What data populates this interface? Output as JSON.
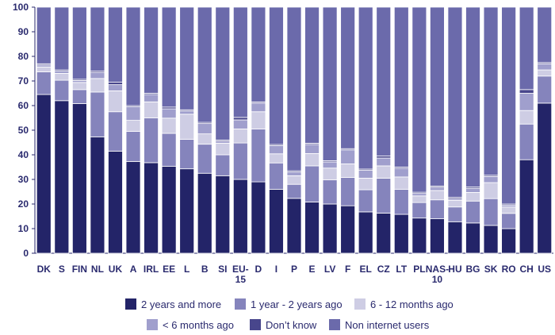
{
  "chart_data": {
    "type": "bar",
    "stacked": true,
    "title": "",
    "xlabel": "",
    "ylabel": "",
    "ylim": [
      0,
      100
    ],
    "yticks": [
      0,
      10,
      20,
      30,
      40,
      50,
      60,
      70,
      80,
      90,
      100
    ],
    "grid": false,
    "legend_position": "bottom",
    "categories": [
      "DK",
      "S",
      "FIN",
      "NL",
      "UK",
      "A",
      "IRL",
      "EE",
      "L",
      "B",
      "SI",
      "EU-15",
      "D",
      "I",
      "P",
      "E",
      "LV",
      "F",
      "EL",
      "CZ",
      "LT",
      "PL",
      "NAS-10",
      "HU",
      "BG",
      "SK",
      "RO",
      "CH",
      "US"
    ],
    "series": [
      {
        "name": "2 years and more",
        "color": "#232468",
        "values": [
          64.5,
          62,
          60.8,
          47.3,
          41.5,
          37.3,
          36.8,
          35.3,
          34.3,
          32.5,
          31.5,
          30,
          29,
          26,
          22.3,
          20.8,
          20,
          19.3,
          16.8,
          16.3,
          15.8,
          14.3,
          14,
          12.8,
          12.3,
          11.3,
          10,
          38,
          61
        ]
      },
      {
        "name": "1 year - 2 years ago",
        "color": "#8584bc",
        "values": [
          9.2,
          8.3,
          5.7,
          18.2,
          16,
          12.2,
          18.2,
          13.4,
          12,
          11.8,
          8.5,
          14.8,
          21.5,
          10.7,
          5.7,
          14.7,
          9.8,
          11.5,
          9,
          14.2,
          10.2,
          6.3,
          7.7,
          6,
          8.9,
          10.9,
          6.2,
          14.5,
          11
        ]
      },
      {
        "name": "6 - 12 months ago",
        "color": "#cecde4",
        "values": [
          2,
          2.8,
          2.9,
          5.5,
          8.5,
          4.5,
          6.5,
          6.2,
          10.2,
          4.2,
          4.7,
          5.7,
          7,
          3.7,
          3.5,
          5,
          4.8,
          5.5,
          4.7,
          5,
          5,
          2.7,
          3.8,
          2.7,
          3.5,
          6.5,
          2.6,
          5.5,
          2.5
        ]
      },
      {
        "name": "< 6 months ago",
        "color": "#a09fcd",
        "values": [
          0.8,
          0.9,
          0.8,
          2.5,
          2.5,
          5.5,
          3,
          3.8,
          1.3,
          4.2,
          0.8,
          3.7,
          3.5,
          3.3,
          1.5,
          3.7,
          2.5,
          5.7,
          3.2,
          3.2,
          3.5,
          1,
          1.3,
          0.7,
          1.7,
          2.5,
          0.7,
          7,
          2.5
        ]
      },
      {
        "name": "Don’t know",
        "color": "#48468c",
        "values": [
          0.5,
          0.5,
          0.5,
          0.5,
          1,
          0.5,
          0.5,
          0.7,
          0.5,
          0.5,
          0.5,
          1,
          0.5,
          0.5,
          0.5,
          0.5,
          0.5,
          0.5,
          0.5,
          0.8,
          0.5,
          0.5,
          0.5,
          0.5,
          0.5,
          0.5,
          0.5,
          1.5,
          0.5
        ]
      },
      {
        "name": "Non internet users",
        "color": "#6b6aab",
        "values": [
          23,
          25.5,
          29.3,
          26,
          30.5,
          40,
          35,
          40.6,
          41.7,
          46.8,
          54,
          44.8,
          38.5,
          55.8,
          66.5,
          55.3,
          62.4,
          57.5,
          65.8,
          60.5,
          65,
          75.2,
          72.7,
          77.3,
          73.1,
          68.3,
          80,
          33.5,
          22.5
        ]
      }
    ]
  }
}
